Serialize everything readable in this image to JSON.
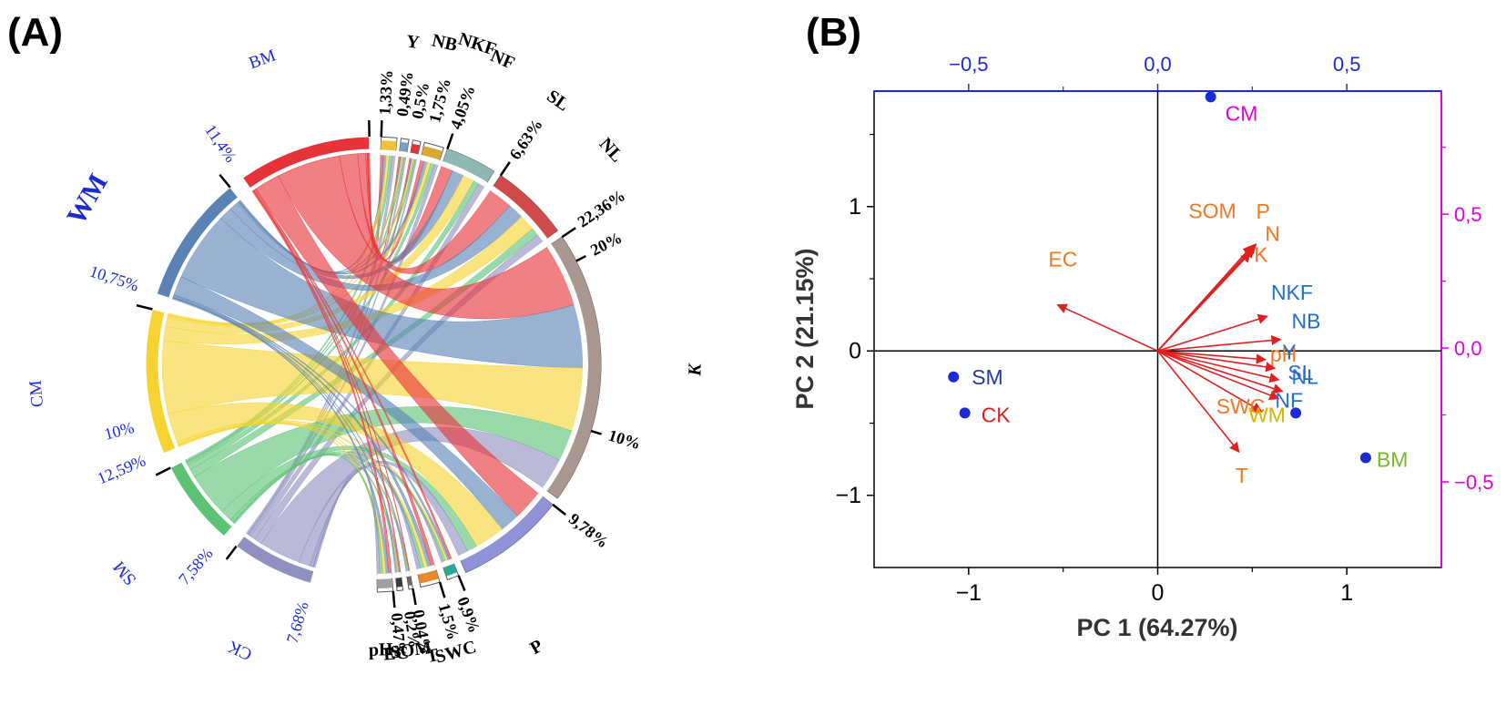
{
  "panels": {
    "a_label": "(A)",
    "b_label": "(B)"
  },
  "chart_data": [
    {
      "type": "chord",
      "panel": "(A)",
      "sources": [
        {
          "name": "BM",
          "percent": "11,4%",
          "color": "#e8323a"
        },
        {
          "name": "WM",
          "percent": "10,75%",
          "color": "#5a82b4"
        },
        {
          "name": "CM",
          "percent": "12,59%",
          "color": "#f7d331"
        },
        {
          "name": "SM",
          "percent": "7,58%",
          "color": "#5cc276"
        },
        {
          "name": "CK",
          "percent": "7,68%",
          "color": "#8f8fc0"
        }
      ],
      "source_tick_labels": [
        {
          "text": "10%",
          "value": 10
        }
      ],
      "targets": [
        {
          "name": "Y",
          "percent": "1,33%",
          "color": "#f0c13a"
        },
        {
          "name": "NB",
          "percent": "0,49%",
          "color": "#7e9cc2"
        },
        {
          "name": "NKF",
          "percent": "0,5%",
          "color": "#e8323a"
        },
        {
          "name": "NF",
          "percent": "1,75%",
          "color": "#d9a935"
        },
        {
          "name": "SL",
          "percent": "4,05%",
          "color": "#8fb8b4"
        },
        {
          "name": "NL",
          "percent": "6,63%",
          "color": "#d04a4a"
        },
        {
          "name": "K",
          "percent": "22,36%",
          "color": "#a9988f"
        },
        {
          "name": "P",
          "percent": "9,78%",
          "color": "#8f92d8"
        },
        {
          "name": "SWC",
          "percent": "0,9%",
          "color": "#2aa89a"
        },
        {
          "name": "T",
          "percent": "1,5%",
          "color": "#e8892a"
        },
        {
          "name": "SOM",
          "percent": "0,04%",
          "color": "#6b6b6b"
        },
        {
          "name": "EC",
          "percent": "0,2%",
          "color": "#3b3b3b"
        },
        {
          "name": "pH",
          "percent": "0,47%",
          "color": "#a0a0a0"
        }
      ],
      "target_tick_labels": [
        {
          "text": "20%",
          "value": 20
        },
        {
          "text": "10%",
          "value": 10
        }
      ]
    },
    {
      "type": "biplot",
      "panel": "(B)",
      "xlabel": "PC 1 (64.27%)",
      "ylabel": "PC 2 (21.15%)",
      "xlim": [
        -1.5,
        1.5
      ],
      "ylim": [
        -1.5,
        1.8
      ],
      "xticks": [
        -1,
        0,
        1
      ],
      "xtick_labels": [
        "−1",
        "0",
        "1"
      ],
      "yticks": [
        -1,
        0,
        1
      ],
      "ytick_labels": [
        "−1",
        "0",
        "1"
      ],
      "top_axis": {
        "lim": [
          -0.75,
          0.75
        ],
        "ticks": [
          -0.5,
          0.0,
          0.5
        ],
        "tick_labels": [
          "−0,5",
          "0,0",
          "0,5"
        ],
        "color": "#1a2bd6"
      },
      "right_axis": {
        "lim": [
          -0.82,
          0.96
        ],
        "ticks": [
          -0.5,
          0.0,
          0.5
        ],
        "tick_labels": [
          "−0,5",
          "0,0",
          "0,5"
        ],
        "color": "#e000e0"
      },
      "scores": [
        {
          "name": "CM",
          "x": 0.28,
          "y": 1.76,
          "color": "#e000e0"
        },
        {
          "name": "SM",
          "x": -1.08,
          "y": -0.18,
          "color": "#1f3f9f"
        },
        {
          "name": "CK",
          "x": -1.02,
          "y": -0.43,
          "color": "#e02020"
        },
        {
          "name": "BM",
          "x": 1.1,
          "y": -0.74,
          "color": "#77b82a"
        },
        {
          "name": "WM",
          "x": 0.73,
          "y": -0.43,
          "color": "#d8b400"
        }
      ],
      "loadings": [
        {
          "name": "EC",
          "x": -0.53,
          "y": 0.32,
          "color": "#f07820"
        },
        {
          "name": "SOM",
          "x": 0.5,
          "y": 0.73,
          "color": "#f07820"
        },
        {
          "name": "P",
          "x": 0.52,
          "y": 0.74,
          "color": "#f07820"
        },
        {
          "name": "N",
          "x": 0.51,
          "y": 0.71,
          "color": "#f07820"
        },
        {
          "name": "K",
          "x": 0.49,
          "y": 0.68,
          "color": "#f07820"
        },
        {
          "name": "NKF",
          "x": 0.58,
          "y": 0.24,
          "color": "#1f6fd0"
        },
        {
          "name": "NB",
          "x": 0.65,
          "y": 0.08,
          "color": "#1f6fd0"
        },
        {
          "name": "pH",
          "x": 0.57,
          "y": -0.06,
          "color": "#f07820"
        },
        {
          "name": "Y",
          "x": 0.62,
          "y": -0.12,
          "color": "#1f6fd0"
        },
        {
          "name": "SL",
          "x": 0.64,
          "y": -0.2,
          "color": "#1f6fd0"
        },
        {
          "name": "NL",
          "x": 0.66,
          "y": -0.28,
          "color": "#1f6fd0"
        },
        {
          "name": "NF",
          "x": 0.64,
          "y": -0.33,
          "color": "#1f6fd0"
        },
        {
          "name": "SWC",
          "x": 0.55,
          "y": -0.42,
          "color": "#f07820"
        },
        {
          "name": "T",
          "x": 0.43,
          "y": -0.7,
          "color": "#f07820"
        }
      ]
    }
  ]
}
